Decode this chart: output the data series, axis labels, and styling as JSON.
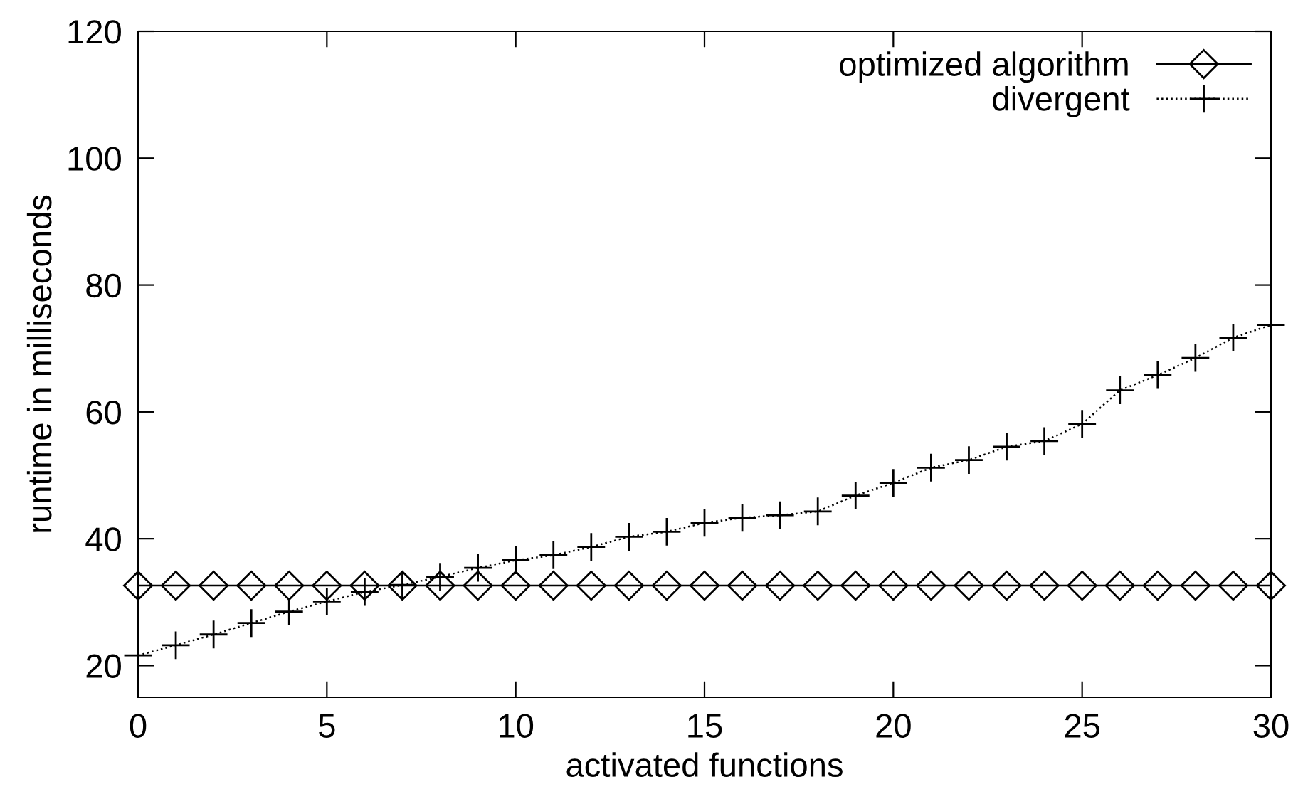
{
  "chart_data": {
    "type": "line",
    "xlabel": "activated functions",
    "ylabel": "runtime in milliseconds",
    "x": [
      0,
      1,
      2,
      3,
      4,
      5,
      6,
      7,
      8,
      9,
      10,
      11,
      12,
      13,
      14,
      15,
      16,
      17,
      18,
      19,
      20,
      21,
      22,
      23,
      24,
      25,
      26,
      27,
      28,
      29,
      30
    ],
    "xlim": [
      0,
      30
    ],
    "xticks": [
      0,
      5,
      10,
      15,
      20,
      25,
      30
    ],
    "ylim": [
      15,
      120
    ],
    "yticks": [
      20,
      40,
      60,
      80,
      100,
      120
    ],
    "grid": false,
    "legend": "top right",
    "series": [
      {
        "name": "optimized algorithm",
        "color": "#000000",
        "marker": "diamond",
        "line_style": "solid",
        "values": [
          32.6,
          32.6,
          32.6,
          32.6,
          32.6,
          32.6,
          32.6,
          32.6,
          32.6,
          32.6,
          32.6,
          32.6,
          32.6,
          32.6,
          32.6,
          32.6,
          32.6,
          32.6,
          32.6,
          32.6,
          32.6,
          32.6,
          32.6,
          32.6,
          32.6,
          32.6,
          32.6,
          32.6,
          32.6,
          32.6,
          32.6
        ]
      },
      {
        "name": "divergent",
        "color": "#000000",
        "marker": "cross",
        "line_style": "dotted",
        "values": [
          21.6,
          23.2,
          24.9,
          26.7,
          28.5,
          30.1,
          31.6,
          32.7,
          34.0,
          35.4,
          36.6,
          37.4,
          38.7,
          40.3,
          41.1,
          42.5,
          43.3,
          43.7,
          44.3,
          46.8,
          48.8,
          51.2,
          52.4,
          54.5,
          55.4,
          58.1,
          63.4,
          65.8,
          68.5,
          71.7,
          73.7
        ]
      }
    ]
  }
}
